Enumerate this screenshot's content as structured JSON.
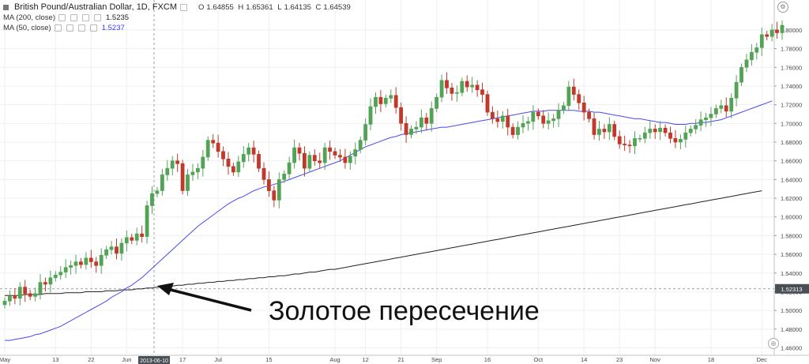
{
  "legend": {
    "symbol": "British Pound/Australian Dollar, 1D, FXCM",
    "open_label": "O",
    "open": "1.64855",
    "high_label": "H",
    "high": "1.65361",
    "low_label": "L",
    "low": "1.64135",
    "close_label": "C",
    "close": "1.64539",
    "ma200_label": "MA (200, close)",
    "ma200_value": "1.5235",
    "ma50_label": "MA (50, close)",
    "ma50_value": "1.5237"
  },
  "annotation": {
    "text": "Золотое пересечение"
  },
  "crosshair": {
    "date_label": "2013-06-10",
    "price_label": "1.52313"
  },
  "colors": {
    "up": "#53a356",
    "down": "#c0392b",
    "ma50": "#4a4af0",
    "ma200": "#222222"
  },
  "chart_data": {
    "type": "candlestick",
    "y_axis": {
      "min": 1.452,
      "max": 1.832,
      "ticks": [
        "1.80000",
        "1.78000",
        "1.76000",
        "1.74000",
        "1.72000",
        "1.70000",
        "1.68000",
        "1.66000",
        "1.64000",
        "1.62000",
        "1.60000",
        "1.58000",
        "1.56000",
        "1.54000",
        "1.52000",
        "1.50000",
        "1.48000",
        "1.46000"
      ]
    },
    "x_ticks": [
      {
        "label": "May",
        "i": 0
      },
      {
        "label": "13",
        "i": 10
      },
      {
        "label": "22",
        "i": 17
      },
      {
        "label": "Jun",
        "i": 24
      },
      {
        "label": "17",
        "i": 35
      },
      {
        "label": "Jul",
        "i": 42
      },
      {
        "label": "15",
        "i": 52
      },
      {
        "label": "Aug",
        "i": 65
      },
      {
        "label": "12",
        "i": 71
      },
      {
        "label": "21",
        "i": 78
      },
      {
        "label": "Sep",
        "i": 85
      },
      {
        "label": "16",
        "i": 95
      },
      {
        "label": "Oct",
        "i": 105
      },
      {
        "label": "14",
        "i": 114
      },
      {
        "label": "23",
        "i": 121
      },
      {
        "label": "Nov",
        "i": 128
      },
      {
        "label": "18",
        "i": 139
      },
      {
        "label": "Dec",
        "i": 149
      }
    ],
    "closes": [
      1.51,
      1.515,
      1.513,
      1.525,
      1.518,
      1.515,
      1.518,
      1.53,
      1.528,
      1.535,
      1.538,
      1.541,
      1.546,
      1.548,
      1.552,
      1.549,
      1.556,
      1.552,
      1.548,
      1.559,
      1.565,
      1.568,
      1.561,
      1.572,
      1.578,
      1.575,
      1.582,
      1.579,
      1.612,
      1.625,
      1.628,
      1.645,
      1.652,
      1.66,
      1.657,
      1.628,
      1.645,
      1.648,
      1.652,
      1.664,
      1.682,
      1.679,
      1.67,
      1.662,
      1.654,
      1.648,
      1.659,
      1.667,
      1.674,
      1.667,
      1.652,
      1.64,
      1.628,
      1.618,
      1.64,
      1.646,
      1.658,
      1.674,
      1.668,
      1.652,
      1.666,
      1.66,
      1.658,
      1.674,
      1.67,
      1.666,
      1.664,
      1.658,
      1.665,
      1.672,
      1.682,
      1.699,
      1.718,
      1.728,
      1.721,
      1.727,
      1.73,
      1.717,
      1.7,
      1.688,
      1.694,
      1.696,
      1.706,
      1.7,
      1.716,
      1.728,
      1.746,
      1.738,
      1.732,
      1.733,
      1.745,
      1.739,
      1.741,
      1.736,
      1.731,
      1.712,
      1.705,
      1.702,
      1.708,
      1.696,
      1.688,
      1.696,
      1.7,
      1.702,
      1.712,
      1.708,
      1.7,
      1.703,
      1.705,
      1.714,
      1.719,
      1.739,
      1.731,
      1.722,
      1.712,
      1.705,
      1.688,
      1.694,
      1.691,
      1.699,
      1.686,
      1.678,
      1.677,
      1.676,
      1.684,
      1.684,
      1.69,
      1.694,
      1.691,
      1.695,
      1.69,
      1.684,
      1.68,
      1.683,
      1.69,
      1.694,
      1.698,
      1.704,
      1.706,
      1.71,
      1.716,
      1.719,
      1.713,
      1.727,
      1.744,
      1.76,
      1.768,
      1.776,
      1.781,
      1.795,
      1.793,
      1.8,
      1.797,
      1.805
    ],
    "ma50": [
      1.468,
      1.468,
      1.469,
      1.47,
      1.471,
      1.472,
      1.474,
      1.475,
      1.477,
      1.479,
      1.481,
      1.483,
      1.486,
      1.489,
      1.492,
      1.495,
      1.498,
      1.501,
      1.504,
      1.507,
      1.51,
      1.514,
      1.517,
      1.52,
      1.524,
      1.527,
      1.531,
      1.535,
      1.54,
      1.545,
      1.55,
      1.555,
      1.56,
      1.565,
      1.57,
      1.575,
      1.58,
      1.585,
      1.59,
      1.594,
      1.598,
      1.602,
      1.606,
      1.61,
      1.614,
      1.617,
      1.62,
      1.622,
      1.625,
      1.628,
      1.63,
      1.632,
      1.633,
      1.635,
      1.636,
      1.638,
      1.64,
      1.642,
      1.644,
      1.646,
      1.648,
      1.65,
      1.652,
      1.654,
      1.656,
      1.658,
      1.66,
      1.663,
      1.666,
      1.669,
      1.672,
      1.675,
      1.677,
      1.679,
      1.681,
      1.683,
      1.685,
      1.686,
      1.688,
      1.689,
      1.69,
      1.691,
      1.692,
      1.693,
      1.694,
      1.695,
      1.696,
      1.696,
      1.697,
      1.698,
      1.699,
      1.7,
      1.701,
      1.702,
      1.703,
      1.704,
      1.705,
      1.706,
      1.707,
      1.708,
      1.709,
      1.71,
      1.711,
      1.712,
      1.713,
      1.713,
      1.713,
      1.714,
      1.714,
      1.714,
      1.714,
      1.714,
      1.714,
      1.713,
      1.713,
      1.713,
      1.712,
      1.712,
      1.711,
      1.71,
      1.709,
      1.708,
      1.707,
      1.706,
      1.705,
      1.705,
      1.704,
      1.703,
      1.702,
      1.701,
      1.701,
      1.7,
      1.699,
      1.699,
      1.699,
      1.7,
      1.7,
      1.701,
      1.701,
      1.702,
      1.703,
      1.704,
      1.706,
      1.708,
      1.71,
      1.712,
      1.714,
      1.716,
      1.718,
      1.72,
      1.722,
      1.724
    ],
    "ma200": [
      1.516,
      1.516,
      1.516,
      1.516,
      1.517,
      1.517,
      1.517,
      1.517,
      1.518,
      1.518,
      1.518,
      1.518,
      1.519,
      1.519,
      1.519,
      1.519,
      1.52,
      1.52,
      1.52,
      1.52,
      1.521,
      1.521,
      1.521,
      1.522,
      1.522,
      1.522,
      1.523,
      1.523,
      1.524,
      1.524,
      1.525,
      1.525,
      1.526,
      1.526,
      1.527,
      1.527,
      1.528,
      1.528,
      1.529,
      1.529,
      1.53,
      1.53,
      1.531,
      1.531,
      1.532,
      1.532,
      1.533,
      1.533,
      1.534,
      1.534,
      1.535,
      1.535,
      1.536,
      1.536,
      1.537,
      1.537,
      1.538,
      1.539,
      1.539,
      1.54,
      1.541,
      1.541,
      1.542,
      1.543,
      1.544,
      1.544,
      1.545,
      1.546,
      1.547,
      1.548,
      1.549,
      1.55,
      1.551,
      1.552,
      1.553,
      1.554,
      1.555,
      1.556,
      1.557,
      1.558,
      1.559,
      1.56,
      1.561,
      1.562,
      1.563,
      1.564,
      1.565,
      1.566,
      1.567,
      1.568,
      1.569,
      1.57,
      1.571,
      1.572,
      1.573,
      1.574,
      1.575,
      1.576,
      1.577,
      1.578,
      1.579,
      1.58,
      1.581,
      1.582,
      1.583,
      1.584,
      1.585,
      1.586,
      1.587,
      1.588,
      1.589,
      1.59,
      1.591,
      1.592,
      1.593,
      1.594,
      1.595,
      1.596,
      1.597,
      1.598,
      1.599,
      1.6,
      1.601,
      1.602,
      1.603,
      1.604,
      1.605,
      1.606,
      1.607,
      1.608,
      1.609,
      1.61,
      1.611,
      1.612,
      1.613,
      1.614,
      1.615,
      1.616,
      1.617,
      1.618,
      1.619,
      1.62,
      1.621,
      1.622,
      1.623,
      1.624,
      1.625,
      1.626,
      1.627,
      1.628
    ]
  }
}
